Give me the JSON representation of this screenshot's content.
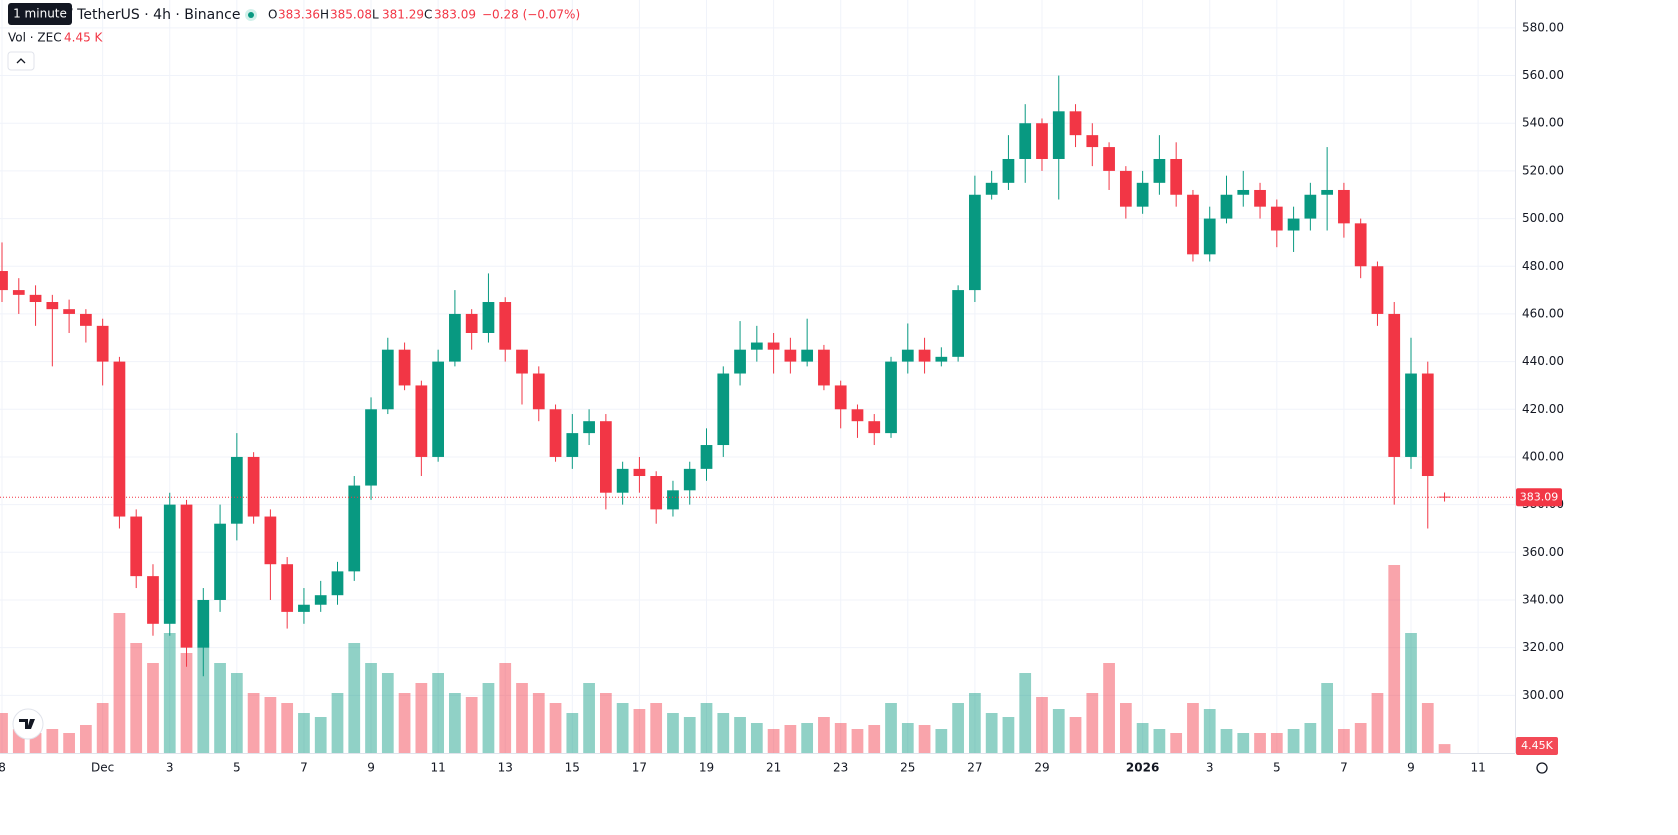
{
  "chart_data": {
    "type": "candlestick",
    "tooltip": "1 minute",
    "title": "/ TetherUS · 4h · Binance",
    "ohlc_letters": [
      "O",
      "H",
      "L",
      "C"
    ],
    "change_label": "−0.28 (−0.07%)",
    "volume_title": "Vol · ZEC",
    "volume_value_label": "4.45 K",
    "volume_tag_label": "4.45K",
    "up_color": "#089981",
    "down_color": "#f23645",
    "open": [
      478,
      470,
      468,
      465,
      462,
      460,
      455,
      440,
      375,
      350,
      330,
      380,
      320,
      340,
      372,
      400,
      375,
      355,
      335,
      338,
      342,
      352,
      388,
      420,
      445,
      430,
      400,
      440,
      460,
      452,
      465,
      445,
      435,
      420,
      400,
      410,
      415,
      385,
      395,
      392,
      378,
      386,
      395,
      405,
      435,
      445,
      448,
      445,
      440,
      445,
      430,
      420,
      415,
      410,
      440,
      445,
      440,
      442,
      470,
      510,
      515,
      525,
      540,
      525,
      545,
      535,
      530,
      520,
      505,
      515,
      525,
      510,
      485,
      500,
      510,
      512,
      505,
      495,
      500,
      510,
      512,
      498,
      480,
      460,
      400,
      435,
      383.36
    ],
    "high": [
      490,
      475,
      472,
      468,
      466,
      462,
      458,
      442,
      378,
      355,
      385,
      382,
      345,
      380,
      410,
      402,
      378,
      358,
      345,
      348,
      356,
      392,
      425,
      450,
      448,
      432,
      445,
      470,
      462,
      477,
      467,
      445,
      438,
      422,
      418,
      420,
      418,
      398,
      400,
      394,
      390,
      398,
      412,
      438,
      457,
      455,
      452,
      450,
      458,
      447,
      432,
      422,
      418,
      442,
      456,
      450,
      446,
      472,
      518,
      520,
      535,
      548,
      542,
      560,
      548,
      540,
      532,
      522,
      520,
      535,
      532,
      512,
      505,
      518,
      520,
      515,
      508,
      505,
      515,
      530,
      515,
      500,
      482,
      465,
      450,
      440,
      385.08
    ],
    "low": [
      465,
      460,
      455,
      438,
      452,
      448,
      430,
      370,
      345,
      325,
      325,
      312,
      308,
      335,
      365,
      372,
      340,
      328,
      330,
      335,
      338,
      348,
      382,
      418,
      428,
      392,
      398,
      438,
      445,
      448,
      440,
      422,
      415,
      398,
      395,
      405,
      378,
      380,
      385,
      372,
      375,
      380,
      390,
      400,
      430,
      440,
      435,
      435,
      438,
      428,
      412,
      408,
      405,
      408,
      435,
      435,
      438,
      440,
      465,
      508,
      512,
      515,
      520,
      508,
      530,
      522,
      512,
      500,
      502,
      510,
      505,
      482,
      482,
      498,
      505,
      500,
      488,
      486,
      495,
      495,
      492,
      475,
      455,
      380,
      395,
      370,
      381.29
    ],
    "close": [
      470,
      468,
      465,
      462,
      460,
      455,
      440,
      375,
      350,
      330,
      380,
      320,
      340,
      372,
      400,
      375,
      355,
      335,
      338,
      342,
      352,
      388,
      420,
      445,
      430,
      400,
      440,
      460,
      452,
      465,
      445,
      435,
      420,
      400,
      410,
      415,
      385,
      395,
      392,
      378,
      386,
      395,
      405,
      435,
      445,
      448,
      445,
      440,
      445,
      430,
      420,
      415,
      410,
      440,
      445,
      440,
      442,
      470,
      510,
      515,
      525,
      540,
      525,
      545,
      535,
      530,
      520,
      505,
      515,
      525,
      510,
      485,
      500,
      510,
      512,
      505,
      495,
      500,
      510,
      512,
      498,
      480,
      460,
      400,
      435,
      392,
      383.09
    ],
    "volume": [
      20,
      12,
      10,
      12,
      10,
      14,
      25,
      70,
      55,
      45,
      60,
      50,
      55,
      45,
      40,
      30,
      28,
      25,
      20,
      18,
      30,
      55,
      45,
      40,
      30,
      35,
      40,
      30,
      28,
      35,
      45,
      35,
      30,
      25,
      20,
      35,
      30,
      25,
      22,
      25,
      20,
      18,
      25,
      20,
      18,
      15,
      12,
      14,
      15,
      18,
      15,
      12,
      14,
      25,
      15,
      14,
      12,
      25,
      30,
      20,
      18,
      40,
      28,
      22,
      18,
      30,
      45,
      25,
      15,
      12,
      10,
      25,
      22,
      12,
      10,
      10,
      10,
      12,
      15,
      35,
      12,
      15,
      30,
      94,
      60,
      25,
      4.45
    ],
    "volume_ylim": [
      0,
      100
    ],
    "ylim": [
      275.8,
      591.7
    ],
    "yticks": [
      {
        "value": 300,
        "label": "300.00"
      },
      {
        "value": 320,
        "label": "320.00"
      },
      {
        "value": 340,
        "label": "340.00"
      },
      {
        "value": 360,
        "label": "360.00"
      },
      {
        "value": 380,
        "label": "380.00"
      },
      {
        "value": 400,
        "label": "400.00"
      },
      {
        "value": 420,
        "label": "420.00"
      },
      {
        "value": 440,
        "label": "440.00"
      },
      {
        "value": 460,
        "label": "460.00"
      },
      {
        "value": 480,
        "label": "480.00"
      },
      {
        "value": 500,
        "label": "500.00"
      },
      {
        "value": 520,
        "label": "520.00"
      },
      {
        "value": 540,
        "label": "540.00"
      },
      {
        "value": 560,
        "label": "560.00"
      },
      {
        "value": 580,
        "label": "580.00"
      }
    ],
    "xlim": [
      -0.12,
      90.2
    ],
    "xticks": [
      {
        "value": 0,
        "label": "8"
      },
      {
        "value": 6,
        "label": "Dec"
      },
      {
        "value": 10,
        "label": "3"
      },
      {
        "value": 14,
        "label": "5"
      },
      {
        "value": 18,
        "label": "7"
      },
      {
        "value": 22,
        "label": "9"
      },
      {
        "value": 26,
        "label": "11"
      },
      {
        "value": 30,
        "label": "13"
      },
      {
        "value": 34,
        "label": "15"
      },
      {
        "value": 38,
        "label": "17"
      },
      {
        "value": 42,
        "label": "19"
      },
      {
        "value": 46,
        "label": "21"
      },
      {
        "value": 50,
        "label": "23"
      },
      {
        "value": 54,
        "label": "25"
      },
      {
        "value": 58,
        "label": "27"
      },
      {
        "value": 62,
        "label": "29"
      },
      {
        "value": 68,
        "label": "2026"
      },
      {
        "value": 72,
        "label": "3"
      },
      {
        "value": 76,
        "label": "5"
      },
      {
        "value": 80,
        "label": "7"
      },
      {
        "value": 84,
        "label": "9"
      },
      {
        "value": 88,
        "label": "11"
      }
    ],
    "grid": true
  }
}
